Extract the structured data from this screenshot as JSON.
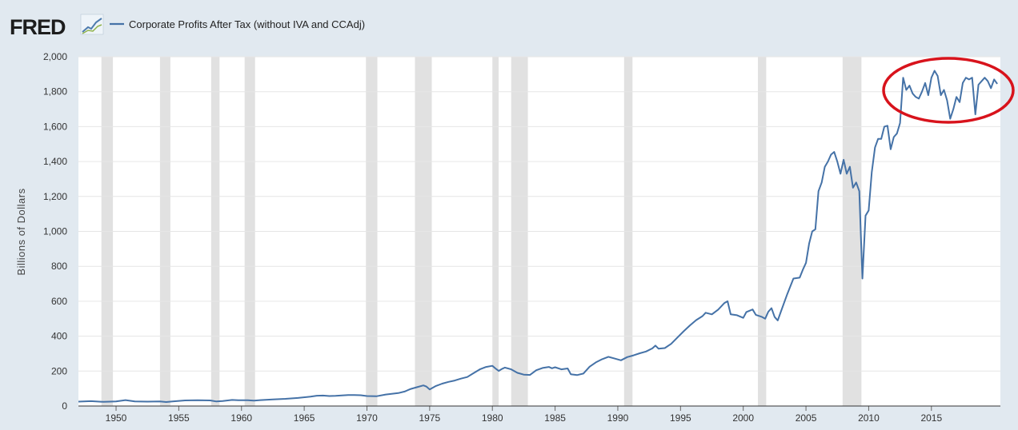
{
  "brand": {
    "logo_text": "FRED",
    "logo_icon": "line-graph-icon"
  },
  "colors": {
    "background": "#e1e9f0",
    "plot": "#ffffff",
    "line": "#4572a7",
    "recession": "#e1e1e1",
    "highlight": "#d8131c"
  },
  "chart_data": {
    "type": "line",
    "series": [
      {
        "name": "Corporate Profits After Tax (without IVA and CCAdj)",
        "points": [
          [
            1947.0,
            25
          ],
          [
            1948.0,
            28
          ],
          [
            1949.0,
            24
          ],
          [
            1950.0,
            26
          ],
          [
            1950.75,
            34
          ],
          [
            1951.5,
            26
          ],
          [
            1952.5,
            25
          ],
          [
            1953.5,
            26
          ],
          [
            1954.0,
            23
          ],
          [
            1954.5,
            26
          ],
          [
            1955.5,
            32
          ],
          [
            1956.5,
            33
          ],
          [
            1957.5,
            32
          ],
          [
            1958.0,
            26
          ],
          [
            1958.5,
            29
          ],
          [
            1959.25,
            35
          ],
          [
            1959.75,
            33
          ],
          [
            1960.5,
            33
          ],
          [
            1961.0,
            31
          ],
          [
            1961.5,
            34
          ],
          [
            1962.5,
            38
          ],
          [
            1963.5,
            41
          ],
          [
            1964.5,
            46
          ],
          [
            1965.5,
            54
          ],
          [
            1966.0,
            59
          ],
          [
            1966.5,
            60
          ],
          [
            1967.0,
            57
          ],
          [
            1967.5,
            58
          ],
          [
            1968.0,
            61
          ],
          [
            1968.5,
            63
          ],
          [
            1969.0,
            63
          ],
          [
            1969.5,
            62
          ],
          [
            1970.0,
            57
          ],
          [
            1970.75,
            56
          ],
          [
            1971.5,
            66
          ],
          [
            1972.5,
            74
          ],
          [
            1973.0,
            83
          ],
          [
            1973.5,
            98
          ],
          [
            1974.0,
            108
          ],
          [
            1974.5,
            118
          ],
          [
            1974.75,
            111
          ],
          [
            1975.0,
            95
          ],
          [
            1975.5,
            115
          ],
          [
            1976.0,
            128
          ],
          [
            1976.5,
            138
          ],
          [
            1977.0,
            146
          ],
          [
            1977.5,
            157
          ],
          [
            1978.0,
            166
          ],
          [
            1978.5,
            188
          ],
          [
            1979.0,
            210
          ],
          [
            1979.5,
            224
          ],
          [
            1980.0,
            230
          ],
          [
            1980.25,
            215
          ],
          [
            1980.5,
            201
          ],
          [
            1980.75,
            212
          ],
          [
            1981.0,
            220
          ],
          [
            1981.5,
            210
          ],
          [
            1982.0,
            190
          ],
          [
            1982.5,
            180
          ],
          [
            1983.0,
            178
          ],
          [
            1983.5,
            205
          ],
          [
            1984.0,
            218
          ],
          [
            1984.5,
            224
          ],
          [
            1984.75,
            216
          ],
          [
            1985.0,
            222
          ],
          [
            1985.5,
            210
          ],
          [
            1986.0,
            215
          ],
          [
            1986.25,
            182
          ],
          [
            1986.75,
            177
          ],
          [
            1987.25,
            186
          ],
          [
            1987.75,
            225
          ],
          [
            1988.25,
            250
          ],
          [
            1988.75,
            268
          ],
          [
            1989.25,
            282
          ],
          [
            1989.75,
            272
          ],
          [
            1990.25,
            262
          ],
          [
            1990.75,
            280
          ],
          [
            1991.25,
            290
          ],
          [
            1991.75,
            302
          ],
          [
            1992.25,
            312
          ],
          [
            1992.75,
            330
          ],
          [
            1993.0,
            346
          ],
          [
            1993.25,
            328
          ],
          [
            1993.75,
            332
          ],
          [
            1994.25,
            356
          ],
          [
            1994.75,
            392
          ],
          [
            1995.25,
            428
          ],
          [
            1995.75,
            462
          ],
          [
            1996.25,
            492
          ],
          [
            1996.75,
            515
          ],
          [
            1997.0,
            534
          ],
          [
            1997.5,
            525
          ],
          [
            1998.0,
            552
          ],
          [
            1998.5,
            590
          ],
          [
            1998.75,
            600
          ],
          [
            1999.0,
            525
          ],
          [
            1999.5,
            520
          ],
          [
            2000.0,
            505
          ],
          [
            2000.25,
            538
          ],
          [
            2000.75,
            553
          ],
          [
            2001.0,
            522
          ],
          [
            2001.5,
            510
          ],
          [
            2001.75,
            500
          ],
          [
            2002.0,
            540
          ],
          [
            2002.25,
            560
          ],
          [
            2002.5,
            510
          ],
          [
            2002.75,
            490
          ],
          [
            2003.0,
            540
          ],
          [
            2003.5,
            640
          ],
          [
            2004.0,
            730
          ],
          [
            2004.5,
            735
          ],
          [
            2004.75,
            780
          ],
          [
            2005.0,
            820
          ],
          [
            2005.25,
            930
          ],
          [
            2005.5,
            1000
          ],
          [
            2005.75,
            1012
          ],
          [
            2006.0,
            1230
          ],
          [
            2006.25,
            1280
          ],
          [
            2006.5,
            1370
          ],
          [
            2006.75,
            1400
          ],
          [
            2007.0,
            1440
          ],
          [
            2007.25,
            1455
          ],
          [
            2007.5,
            1400
          ],
          [
            2007.75,
            1330
          ],
          [
            2008.0,
            1410
          ],
          [
            2008.25,
            1330
          ],
          [
            2008.5,
            1370
          ],
          [
            2008.75,
            1250
          ],
          [
            2009.0,
            1280
          ],
          [
            2009.25,
            1230
          ],
          [
            2009.5,
            730
          ],
          [
            2009.75,
            1090
          ],
          [
            2010.0,
            1120
          ],
          [
            2010.25,
            1340
          ],
          [
            2010.5,
            1480
          ],
          [
            2010.75,
            1530
          ],
          [
            2011.0,
            1530
          ],
          [
            2011.25,
            1600
          ],
          [
            2011.5,
            1605
          ],
          [
            2011.75,
            1470
          ],
          [
            2012.0,
            1540
          ],
          [
            2012.25,
            1560
          ],
          [
            2012.5,
            1620
          ],
          [
            2012.75,
            1880
          ],
          [
            2013.0,
            1810
          ],
          [
            2013.25,
            1835
          ],
          [
            2013.5,
            1790
          ],
          [
            2013.75,
            1770
          ],
          [
            2014.0,
            1760
          ],
          [
            2014.25,
            1800
          ],
          [
            2014.5,
            1850
          ],
          [
            2014.75,
            1780
          ],
          [
            2015.0,
            1880
          ],
          [
            2015.25,
            1920
          ],
          [
            2015.5,
            1890
          ],
          [
            2015.75,
            1780
          ],
          [
            2016.0,
            1810
          ],
          [
            2016.25,
            1750
          ],
          [
            2016.5,
            1645
          ],
          [
            2016.75,
            1700
          ],
          [
            2017.0,
            1770
          ],
          [
            2017.25,
            1740
          ],
          [
            2017.5,
            1850
          ],
          [
            2017.75,
            1880
          ],
          [
            2018.0,
            1870
          ],
          [
            2018.25,
            1880
          ],
          [
            2018.5,
            1670
          ],
          [
            2018.75,
            1840
          ],
          [
            2019.0,
            1860
          ],
          [
            2019.25,
            1880
          ],
          [
            2019.5,
            1860
          ],
          [
            2019.75,
            1820
          ],
          [
            2020.0,
            1870
          ],
          [
            2020.25,
            1845
          ]
        ]
      }
    ],
    "recessions": [
      [
        1948.83,
        1949.75
      ],
      [
        1953.5,
        1954.33
      ],
      [
        1957.58,
        1958.25
      ],
      [
        1960.25,
        1961.08
      ],
      [
        1969.92,
        1970.83
      ],
      [
        1973.83,
        1975.17
      ],
      [
        1980.0,
        1980.5
      ],
      [
        1981.5,
        1982.83
      ],
      [
        1990.5,
        1991.17
      ],
      [
        2001.17,
        2001.83
      ],
      [
        2007.92,
        2009.42
      ]
    ],
    "xlim": [
      1947.0,
      2020.5
    ],
    "ylim": [
      0,
      2000
    ],
    "xticks": [
      1950,
      1955,
      1960,
      1965,
      1970,
      1975,
      1980,
      1985,
      1990,
      1995,
      2000,
      2005,
      2010,
      2015
    ],
    "yticks": [
      0,
      200,
      400,
      600,
      800,
      1000,
      1200,
      1400,
      1600,
      1800,
      2000
    ],
    "ytick_labels": [
      "0",
      "200",
      "400",
      "600",
      "800",
      "1,000",
      "1,200",
      "1,400",
      "1,600",
      "1,800",
      "2,000"
    ],
    "title": "",
    "xlabel": "",
    "ylabel": "Billions of Dollars",
    "legend": [
      "Corporate Profits After Tax (without IVA and CCAdj)"
    ],
    "grid": true,
    "annotation": "red circle around 2012-2020 plateau"
  }
}
